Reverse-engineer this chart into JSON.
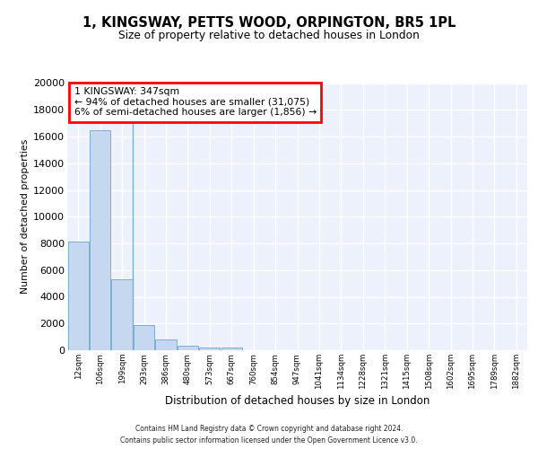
{
  "title_line1": "1, KINGSWAY, PETTS WOOD, ORPINGTON, BR5 1PL",
  "title_line2": "Size of property relative to detached houses in London",
  "xlabel": "Distribution of detached houses by size in London",
  "ylabel": "Number of detached properties",
  "categories": [
    "12sqm",
    "106sqm",
    "199sqm",
    "293sqm",
    "386sqm",
    "480sqm",
    "573sqm",
    "667sqm",
    "760sqm",
    "854sqm",
    "947sqm",
    "1041sqm",
    "1134sqm",
    "1228sqm",
    "1321sqm",
    "1415sqm",
    "1508sqm",
    "1602sqm",
    "1695sqm",
    "1789sqm",
    "1882sqm"
  ],
  "values": [
    8150,
    16500,
    5300,
    1850,
    800,
    350,
    220,
    220,
    0,
    0,
    0,
    0,
    0,
    0,
    0,
    0,
    0,
    0,
    0,
    0,
    0
  ],
  "bar_color": "#c5d8ef",
  "bar_edge_color": "#7bafd4",
  "property_line_x": 2.5,
  "ylim": [
    0,
    20000
  ],
  "yticks": [
    0,
    2000,
    4000,
    6000,
    8000,
    10000,
    12000,
    14000,
    16000,
    18000,
    20000
  ],
  "bg_color": "#edf1fb",
  "grid_color": "#ffffff",
  "annotation_line1": "1 KINGSWAY: 347sqm",
  "annotation_line2": "← 94% of detached houses are smaller (31,075)",
  "annotation_line3": "6% of semi-detached houses are larger (1,856) →",
  "footer1": "Contains HM Land Registry data © Crown copyright and database right 2024.",
  "footer2": "Contains public sector information licensed under the Open Government Licence v3.0."
}
